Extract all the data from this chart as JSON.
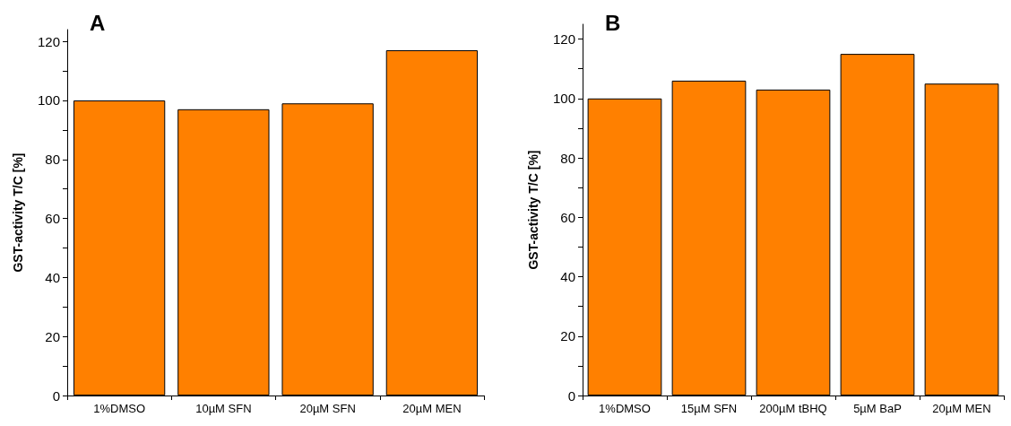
{
  "chart_data": [
    {
      "type": "bar",
      "title": "A",
      "ylabel": "GST-activity T/C [%]",
      "categories": [
        "1%DMSO",
        "10µM SFN",
        "20µM SFN",
        "20µM MEN"
      ],
      "values": [
        100,
        97,
        99,
        117
      ],
      "color": "#ff8000",
      "ylim": [
        0,
        124
      ],
      "yticks": [
        0,
        {
          "value": 10,
          "label": null
        },
        20,
        {
          "value": 30,
          "label": null
        },
        40,
        {
          "value": 50,
          "label": null
        },
        60,
        {
          "value": 70,
          "label": null
        },
        80,
        {
          "value": 90,
          "label": null
        },
        100,
        {
          "value": 110,
          "label": null
        },
        120
      ],
      "grid": false
    },
    {
      "type": "bar",
      "title": "B",
      "ylabel": "GST-activity T/C [%]",
      "categories": [
        "1%DMSO",
        "15µM SFN",
        "200µM tBHQ",
        "5µM BaP",
        "20µM MEN"
      ],
      "values": [
        100,
        106,
        103,
        115,
        105
      ],
      "color": "#ff8000",
      "ylim": [
        0,
        125
      ],
      "yticks": [
        0,
        {
          "value": 10,
          "label": null
        },
        20,
        {
          "value": 30,
          "label": null
        },
        40,
        {
          "value": 50,
          "label": null
        },
        60,
        {
          "value": 70,
          "label": null
        },
        80,
        {
          "value": 90,
          "label": null
        },
        100,
        {
          "value": 110,
          "label": null
        },
        120
      ],
      "grid": false
    }
  ]
}
